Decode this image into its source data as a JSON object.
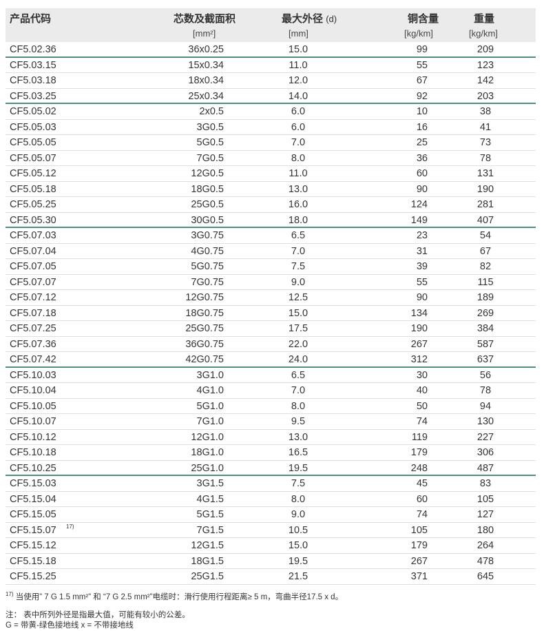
{
  "header": {
    "code": "产品代码",
    "cores": "芯数及截面积",
    "cores_unit": "[mm²]",
    "diameter": "最大外径",
    "diameter_sym": "(d)",
    "diameter_unit": "[mm]",
    "copper": "铜含量",
    "copper_unit": "[kg/km]",
    "weight": "重量",
    "weight_unit": "[kg/km]"
  },
  "rows": [
    [
      "CF5.02.36",
      "36x0.25",
      "15.0",
      "99",
      "209"
    ],
    [
      "CF5.03.15",
      "15x0.34",
      "11.0",
      "55",
      "123"
    ],
    [
      "CF5.03.18",
      "18x0.34",
      "12.0",
      "67",
      "142"
    ],
    [
      "CF5.03.25",
      "25x0.34",
      "14.0",
      "92",
      "203"
    ],
    [
      "CF5.05.02",
      "2x0.5",
      "6.0",
      "10",
      "38"
    ],
    [
      "CF5.05.03",
      "3G0.5",
      "6.0",
      "16",
      "41"
    ],
    [
      "CF5.05.05",
      "5G0.5",
      "7.0",
      "25",
      "73"
    ],
    [
      "CF5.05.07",
      "7G0.5",
      "8.0",
      "36",
      "78"
    ],
    [
      "CF5.05.12",
      "12G0.5",
      "11.0",
      "60",
      "131"
    ],
    [
      "CF5.05.18",
      "18G0.5",
      "13.0",
      "90",
      "190"
    ],
    [
      "CF5.05.25",
      "25G0.5",
      "16.0",
      "124",
      "281"
    ],
    [
      "CF5.05.30",
      "30G0.5",
      "18.0",
      "149",
      "407"
    ],
    [
      "CF5.07.03",
      "3G0.75",
      "6.5",
      "23",
      "54"
    ],
    [
      "CF5.07.04",
      "4G0.75",
      "7.0",
      "31",
      "67"
    ],
    [
      "CF5.07.05",
      "5G0.75",
      "7.5",
      "39",
      "82"
    ],
    [
      "CF5.07.07",
      "7G0.75",
      "9.0",
      "55",
      "115"
    ],
    [
      "CF5.07.12",
      "12G0.75",
      "12.5",
      "90",
      "189"
    ],
    [
      "CF5.07.18",
      "18G0.75",
      "15.0",
      "134",
      "269"
    ],
    [
      "CF5.07.25",
      "25G0.75",
      "17.5",
      "190",
      "384"
    ],
    [
      "CF5.07.36",
      "36G0.75",
      "22.0",
      "267",
      "587"
    ],
    [
      "CF5.07.42",
      "42G0.75",
      "24.0",
      "312",
      "637"
    ],
    [
      "CF5.10.03",
      "3G1.0",
      "6.5",
      "30",
      "56"
    ],
    [
      "CF5.10.04",
      "4G1.0",
      "7.0",
      "40",
      "78"
    ],
    [
      "CF5.10.05",
      "5G1.0",
      "8.0",
      "50",
      "94"
    ],
    [
      "CF5.10.07",
      "7G1.0",
      "9.5",
      "74",
      "130"
    ],
    [
      "CF5.10.12",
      "12G1.0",
      "13.0",
      "119",
      "227"
    ],
    [
      "CF5.10.18",
      "18G1.0",
      "16.5",
      "179",
      "306"
    ],
    [
      "CF5.10.25",
      "25G1.0",
      "19.5",
      "248",
      "487"
    ],
    [
      "CF5.15.03",
      "3G1.5",
      "7.5",
      "45",
      "83"
    ],
    [
      "CF5.15.04",
      "4G1.5",
      "8.0",
      "60",
      "105"
    ],
    [
      "CF5.15.05",
      "5G1.5",
      "9.0",
      "74",
      "127"
    ],
    [
      "CF5.15.07",
      "7G1.5",
      "10.5",
      "105",
      "180",
      "17)"
    ],
    [
      "CF5.15.12",
      "12G1.5",
      "15.0",
      "179",
      "264"
    ],
    [
      "CF5.15.18",
      "18G1.5",
      "19.5",
      "267",
      "478"
    ],
    [
      "CF5.15.25",
      "25G1.5",
      "21.5",
      "371",
      "645"
    ]
  ],
  "group_ends": [
    0,
    3,
    11,
    20,
    27
  ],
  "footnotes": {
    "fn17_mark": "17)",
    "fn17": "当使用” 7 G 1.5 mm²” 和 “7 G 2.5 mm²”电缆时：滑行使用行程距离≥ 5 m，弯曲半径17.5 x d。",
    "note1": "注： 表中所列外径是指最大值，可能有较小的公差。",
    "note2": "G = 带黄-绿色接地线  x = 不带接地线"
  },
  "colors": {
    "group_separator": "#4f8f72",
    "header_bg": "#ebebeb"
  }
}
